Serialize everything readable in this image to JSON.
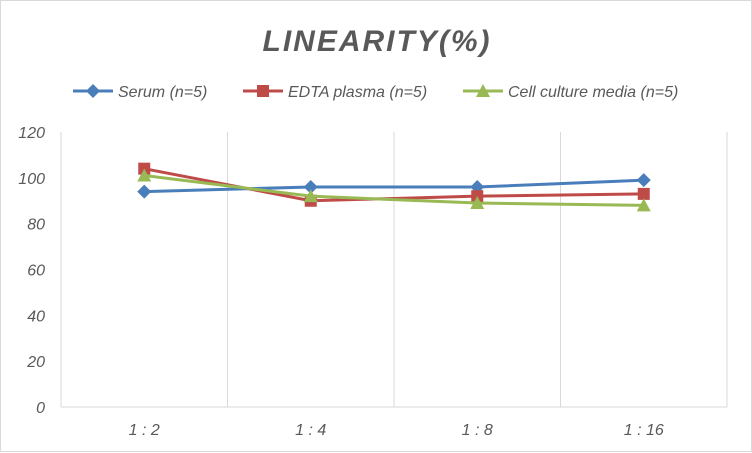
{
  "chart_data": {
    "type": "line",
    "title": "LINEARITY(%)",
    "categories": [
      "1:2",
      "1:4",
      "1:8",
      "1:16"
    ],
    "ylim": [
      0,
      120
    ],
    "yticks": [
      0,
      20,
      40,
      60,
      80,
      100,
      120
    ],
    "grid": "vertical",
    "legend": "top",
    "series": [
      {
        "name": "Serum (n=5)",
        "color": "#4a7ebb",
        "marker": "diamond",
        "values": [
          94,
          96,
          96,
          99
        ]
      },
      {
        "name": "EDTA plasma (n=5)",
        "color": "#be4b48",
        "marker": "square",
        "values": [
          104,
          90,
          92,
          93
        ]
      },
      {
        "name": "Cell culture media (n=5)",
        "color": "#98b954",
        "marker": "triangle",
        "values": [
          101,
          92,
          89,
          88
        ]
      }
    ]
  }
}
